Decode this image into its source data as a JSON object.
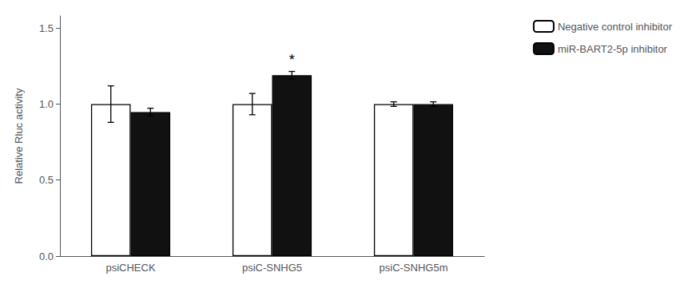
{
  "chart_data": {
    "type": "bar",
    "categories": [
      "psiCHECK",
      "psiC-SNHG5",
      "psiC-SNHG5m"
    ],
    "series": [
      {
        "name": "Negative control inhibitor",
        "color": "#ffffff",
        "values": [
          1.0,
          1.0,
          1.0
        ],
        "errors": [
          0.12,
          0.07,
          0.015
        ]
      },
      {
        "name": "miR-BART2-5p inhibitor",
        "color": "#111111",
        "values": [
          0.948,
          1.19,
          1.0
        ],
        "errors": [
          0.025,
          0.025,
          0.015
        ]
      }
    ],
    "ylabel": "Relative Rluc activity",
    "ylim": [
      0.0,
      1.58
    ],
    "yticks": [
      {
        "value": 0.0,
        "label": "0.0"
      },
      0.5,
      {
        "value": 1.0,
        "label": "1.0"
      },
      1.5
    ],
    "annotations": [
      {
        "text": "*",
        "category": "psiC-SNHG5",
        "series": "miR-BART2-5p inhibitor",
        "y": 1.245
      }
    ],
    "legend": "right",
    "grid": false
  }
}
